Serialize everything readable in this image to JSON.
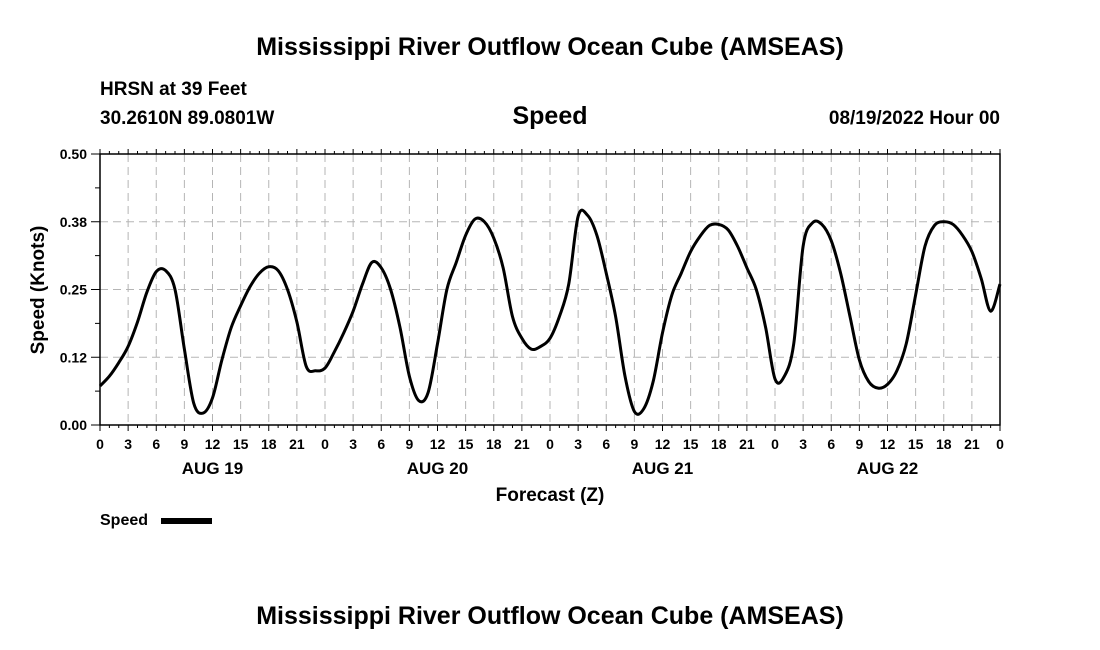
{
  "page": {
    "title": "Mississippi River Outflow Ocean Cube (AMSEAS)",
    "footer_title": "Mississippi River Outflow Ocean Cube (AMSEAS)",
    "station": "HRSN at 39 Feet",
    "location": "30.2610N  89.0801W",
    "variable": "Speed",
    "datetime": "08/19/2022 Hour 00"
  },
  "chart_data": {
    "type": "line",
    "xlabel": "Forecast (Z)",
    "ylabel": "Speed (Knots)",
    "xlim": [
      0,
      96
    ],
    "ylim": [
      0,
      0.5
    ],
    "yticks": [
      "0.00",
      "0.12",
      "0.25",
      "0.38",
      "0.50"
    ],
    "ytick_values": [
      0,
      0.125,
      0.25,
      0.375,
      0.5
    ],
    "xtick_labels": [
      "0",
      "3",
      "6",
      "9",
      "12",
      "15",
      "18",
      "21",
      "0",
      "3",
      "6",
      "9",
      "12",
      "15",
      "18",
      "21",
      "0",
      "3",
      "6",
      "9",
      "12",
      "15",
      "18",
      "21",
      "0",
      "3",
      "6",
      "9",
      "12",
      "15",
      "18",
      "21",
      "0"
    ],
    "day_labels": [
      {
        "label": "AUG 19",
        "at": 12
      },
      {
        "label": "AUG 20",
        "at": 36
      },
      {
        "label": "AUG 21",
        "at": 60
      },
      {
        "label": "AUG 22",
        "at": 84
      }
    ],
    "grid": true,
    "legend": {
      "placement": "bottom-left",
      "entries": [
        {
          "name": "Speed",
          "color": "#000000"
        }
      ]
    },
    "series": [
      {
        "name": "Speed",
        "color": "#000000",
        "x": [
          0,
          1,
          2,
          3,
          4,
          5,
          6,
          7,
          8,
          9,
          10,
          11,
          12,
          13,
          14,
          15,
          16,
          17,
          18,
          19,
          20,
          21,
          22,
          23,
          24,
          25,
          26,
          27,
          28,
          29,
          30,
          31,
          32,
          33,
          34,
          35,
          36,
          37,
          38,
          39,
          40,
          41,
          42,
          43,
          44,
          45,
          46,
          47,
          48,
          49,
          50,
          51,
          52,
          53,
          54,
          55,
          56,
          57,
          58,
          59,
          60,
          61,
          62,
          63,
          64,
          65,
          66,
          67,
          68,
          69,
          70,
          71,
          72,
          73,
          74,
          75,
          76,
          77,
          78,
          79,
          80,
          81,
          82,
          83,
          84,
          85,
          86,
          87,
          88,
          89,
          90,
          91,
          92,
          93,
          94,
          95,
          96
        ],
        "values": [
          0.072,
          0.09,
          0.115,
          0.145,
          0.19,
          0.245,
          0.283,
          0.285,
          0.25,
          0.14,
          0.04,
          0.022,
          0.05,
          0.12,
          0.18,
          0.22,
          0.255,
          0.28,
          0.292,
          0.285,
          0.25,
          0.19,
          0.108,
          0.1,
          0.105,
          0.135,
          0.17,
          0.21,
          0.26,
          0.3,
          0.29,
          0.25,
          0.18,
          0.09,
          0.045,
          0.06,
          0.15,
          0.25,
          0.3,
          0.35,
          0.38,
          0.375,
          0.345,
          0.29,
          0.2,
          0.16,
          0.14,
          0.145,
          0.16,
          0.2,
          0.26,
          0.385,
          0.387,
          0.35,
          0.28,
          0.2,
          0.09,
          0.025,
          0.03,
          0.08,
          0.17,
          0.24,
          0.28,
          0.32,
          0.348,
          0.368,
          0.37,
          0.36,
          0.33,
          0.29,
          0.25,
          0.18,
          0.085,
          0.09,
          0.15,
          0.33,
          0.373,
          0.37,
          0.34,
          0.28,
          0.2,
          0.12,
          0.08,
          0.068,
          0.075,
          0.1,
          0.15,
          0.24,
          0.33,
          0.368,
          0.375,
          0.37,
          0.35,
          0.32,
          0.27,
          0.21,
          0.26
        ]
      }
    ]
  }
}
